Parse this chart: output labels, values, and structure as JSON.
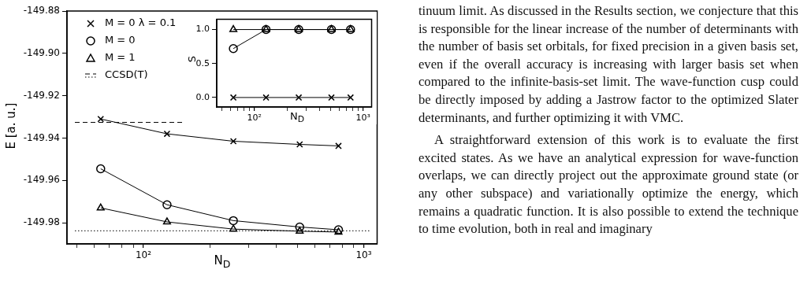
{
  "chart_data": [
    {
      "type": "line",
      "xlabel": "N$_{D}$",
      "ylabel": "E  [a. u.]",
      "log": "x",
      "grid": false,
      "legend": "top left",
      "xlim": [
        45,
        1150
      ],
      "ylim": [
        -149.99,
        -149.88
      ],
      "xticks": [
        {
          "value": 50,
          "label": null
        },
        {
          "value": 60,
          "label": null
        },
        {
          "value": 70,
          "label": null
        },
        {
          "value": 80,
          "label": null
        },
        {
          "value": 90,
          "label": null
        },
        {
          "value": 100,
          "label": "10²"
        },
        {
          "value": 200,
          "label": null
        },
        {
          "value": 300,
          "label": null
        },
        {
          "value": 400,
          "label": null
        },
        {
          "value": 500,
          "label": null
        },
        {
          "value": 600,
          "label": null
        },
        {
          "value": 700,
          "label": null
        },
        {
          "value": 800,
          "label": null
        },
        {
          "value": 900,
          "label": null
        },
        {
          "value": 1000,
          "label": "10³"
        }
      ],
      "yticks": [
        {
          "value": -149.98,
          "label": "-149.98"
        },
        {
          "value": -149.96,
          "label": "-149.96"
        },
        {
          "value": -149.94,
          "label": "-149.94"
        },
        {
          "value": -149.92,
          "label": "-149.92"
        },
        {
          "value": -149.9,
          "label": "-149.90"
        },
        {
          "value": -149.88,
          "label": "-149.88"
        }
      ],
      "x": [
        64,
        128,
        256,
        512,
        768
      ],
      "series": [
        {
          "name": "M = 0 λ = 0.1",
          "color": "#000000",
          "marker": "cross",
          "values": [
            -149.931,
            -149.938,
            -149.9415,
            -149.943,
            -149.9437
          ]
        },
        {
          "name": "M = 0",
          "color": "#000000",
          "marker": "circle",
          "values": [
            -149.9545,
            -149.9715,
            -149.979,
            -149.982,
            -149.9833
          ]
        },
        {
          "name": "M = 1",
          "color": "#000000",
          "marker": "triangle",
          "values": [
            -149.973,
            -149.9796,
            -149.983,
            -149.984,
            -149.9844
          ]
        }
      ],
      "ref_lines": [
        {
          "axis": "y",
          "value": -149.9326,
          "label": "CCSD(T)",
          "line_style": "dashed",
          "color": "#000000"
        },
        {
          "axis": "y",
          "value": -149.9838,
          "label": null,
          "line_style": "dotted",
          "color": "#000000"
        }
      ]
    },
    {
      "type": "line",
      "xlabel": "N$_{D}$",
      "ylabel": "S",
      "log": "x",
      "grid": false,
      "xlim": [
        45,
        1200
      ],
      "ylim": [
        -0.14,
        1.15
      ],
      "xticks": [
        {
          "value": 50,
          "label": null
        },
        {
          "value": 60,
          "label": null
        },
        {
          "value": 70,
          "label": null
        },
        {
          "value": 80,
          "label": null
        },
        {
          "value": 90,
          "label": null
        },
        {
          "value": 100,
          "label": "10²"
        },
        {
          "value": 200,
          "label": null
        },
        {
          "value": 300,
          "label": null
        },
        {
          "value": 400,
          "label": null
        },
        {
          "value": 500,
          "label": null
        },
        {
          "value": 600,
          "label": null
        },
        {
          "value": 700,
          "label": null
        },
        {
          "value": 800,
          "label": null
        },
        {
          "value": 900,
          "label": null
        },
        {
          "value": 1000,
          "label": "10³"
        }
      ],
      "yticks": [
        {
          "value": 0,
          "label": "0.0"
        },
        {
          "value": 0.5,
          "label": "0.5"
        },
        {
          "value": 1,
          "label": "1.0"
        }
      ],
      "x": [
        64,
        128,
        256,
        512,
        768
      ],
      "series": [
        {
          "color": "#000000",
          "marker": "cross",
          "values": [
            0,
            0,
            0,
            0,
            0
          ]
        },
        {
          "color": "#000000",
          "marker": "circle",
          "values": [
            0.72,
            1,
            1,
            1,
            1
          ]
        },
        {
          "color": "#000000",
          "marker": "triangle",
          "values": [
            1,
            1,
            1,
            1,
            1
          ]
        }
      ]
    },
    {
      "type": "other",
      "annotations": [
        "tinuum limit. As discussed in the Results section, we conjecture that this is responsible for the linear increase of the number of determinants with the number of basis set orbitals, for fixed precision in a given basis set, even if the overall accuracy is increasing with larger basis set when compared to the infinite-basis-set limit. The wave-function cusp could be directly imposed by adding a Jastrow factor to the optimized Slater determinants, and further optimizing it with VMC.",
        "A straightforward extension of this work is to evaluate the first excited states. As we have an analytical expression for wave-function overlaps, we can directly project out the approximate ground state (or any other subspace) and variationally optimize the energy, which remains a quadratic function. It is also possible to extend the technique to time evolution, both in real and imaginary"
      ]
    }
  ]
}
